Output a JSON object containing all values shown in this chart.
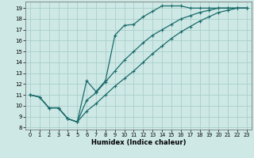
{
  "xlabel": "Humidex (Indice chaleur)",
  "bg_color": "#cde8e5",
  "grid_color": "#aacfcc",
  "line_color": "#1a6b6b",
  "xlim": [
    -0.5,
    23.5
  ],
  "ylim": [
    7.8,
    19.6
  ],
  "yticks": [
    8,
    9,
    10,
    11,
    12,
    13,
    14,
    15,
    16,
    17,
    18,
    19
  ],
  "xticks": [
    0,
    1,
    2,
    3,
    4,
    5,
    6,
    7,
    8,
    9,
    10,
    11,
    12,
    13,
    14,
    15,
    16,
    17,
    18,
    19,
    20,
    21,
    22,
    23
  ],
  "line1_x": [
    0,
    1,
    2,
    3,
    4,
    5,
    6,
    7,
    8,
    9,
    10,
    11,
    12,
    13,
    14,
    15,
    16,
    17,
    18,
    19,
    20,
    21,
    22,
    23
  ],
  "line1_y": [
    11.0,
    10.8,
    9.8,
    9.8,
    8.8,
    8.5,
    12.3,
    11.3,
    12.3,
    16.5,
    17.4,
    17.5,
    18.2,
    18.7,
    19.2,
    19.2,
    19.2,
    19.0,
    19.0,
    19.0,
    19.0,
    19.0,
    19.0,
    19.0
  ],
  "line2_x": [
    0,
    1,
    2,
    3,
    4,
    5,
    6,
    7,
    8,
    9,
    10,
    11,
    12,
    13,
    14,
    15,
    16,
    17,
    18,
    19,
    20,
    21,
    22,
    23
  ],
  "line2_y": [
    11.0,
    10.8,
    9.8,
    9.8,
    8.8,
    8.5,
    10.5,
    11.2,
    12.2,
    13.2,
    14.2,
    15.0,
    15.8,
    16.5,
    17.0,
    17.5,
    18.0,
    18.3,
    18.6,
    18.8,
    19.0,
    19.0,
    19.0,
    19.0
  ],
  "line3_x": [
    0,
    1,
    2,
    3,
    4,
    5,
    6,
    7,
    8,
    9,
    10,
    11,
    12,
    13,
    14,
    15,
    16,
    17,
    18,
    19,
    20,
    21,
    22,
    23
  ],
  "line3_y": [
    11.0,
    10.8,
    9.8,
    9.8,
    8.8,
    8.5,
    9.5,
    10.2,
    11.0,
    11.8,
    12.5,
    13.2,
    14.0,
    14.8,
    15.5,
    16.2,
    16.8,
    17.3,
    17.8,
    18.2,
    18.6,
    18.8,
    19.0,
    19.0
  ]
}
